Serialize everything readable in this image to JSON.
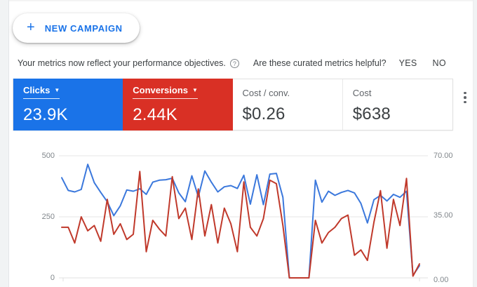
{
  "toolbar": {
    "new_campaign_label": "NEW CAMPAIGN",
    "plus_glyph": "+"
  },
  "notice": {
    "message": "Your metrics now reflect your performance objectives.",
    "help_glyph": "?",
    "question": "Are these curated metrics helpful?",
    "yes_label": "YES",
    "no_label": "NO"
  },
  "scorecards": [
    {
      "label": "Clicks",
      "value": "23.9K",
      "color": "#1a73e8",
      "caret": "▼"
    },
    {
      "label": "Conversions",
      "value": "2.44K",
      "color": "#d93025",
      "caret": "▼"
    },
    {
      "label": "Cost / conv.",
      "value": "$0.26"
    },
    {
      "label": "Cost",
      "value": "$638"
    }
  ],
  "overflow_menu": {
    "icon": "kebab-vertical-dots"
  },
  "chart_data": {
    "type": "line",
    "title": "",
    "xlabel": "",
    "ylabel_left": "Clicks",
    "ylabel_right": "Conversions",
    "grid": "horizontal",
    "legend_position": "none (series identified by colored scorecards above)",
    "left_axis": {
      "min": 0,
      "max": 500,
      "ticks": [
        "0",
        "250",
        "500"
      ]
    },
    "right_axis": {
      "min": 0,
      "max": 70,
      "ticks": [
        "0.00",
        "35.00",
        "70.00"
      ]
    },
    "n_points": 56,
    "series": [
      {
        "name": "Clicks",
        "axis": "left",
        "color": "#3b78dc",
        "values": [
          410,
          358,
          352,
          362,
          465,
          390,
          350,
          312,
          255,
          295,
          360,
          355,
          365,
          342,
          392,
          400,
          402,
          408,
          348,
          312,
          418,
          332,
          438,
          392,
          352,
          373,
          378,
          366,
          420,
          302,
          422,
          300,
          425,
          428,
          330,
          0,
          0,
          0,
          0,
          400,
          310,
          355,
          338,
          350,
          358,
          348,
          305,
          225,
          320,
          338,
          315,
          342,
          330,
          355,
          10,
          50
        ]
      },
      {
        "name": "Conversions",
        "axis": "right",
        "color": "#c0392b",
        "values": [
          29,
          29,
          20,
          35,
          27,
          30,
          21,
          45,
          25,
          31,
          22,
          25,
          61,
          15,
          33,
          28,
          24,
          58,
          34,
          40,
          22,
          51,
          24,
          42,
          20,
          40,
          31,
          15,
          55,
          29,
          24,
          34,
          56,
          54,
          30,
          0,
          0,
          0,
          0,
          33,
          20,
          26,
          29,
          34,
          36,
          13,
          16,
          10,
          32,
          50,
          17,
          45,
          30,
          57,
          1,
          8
        ]
      }
    ]
  }
}
